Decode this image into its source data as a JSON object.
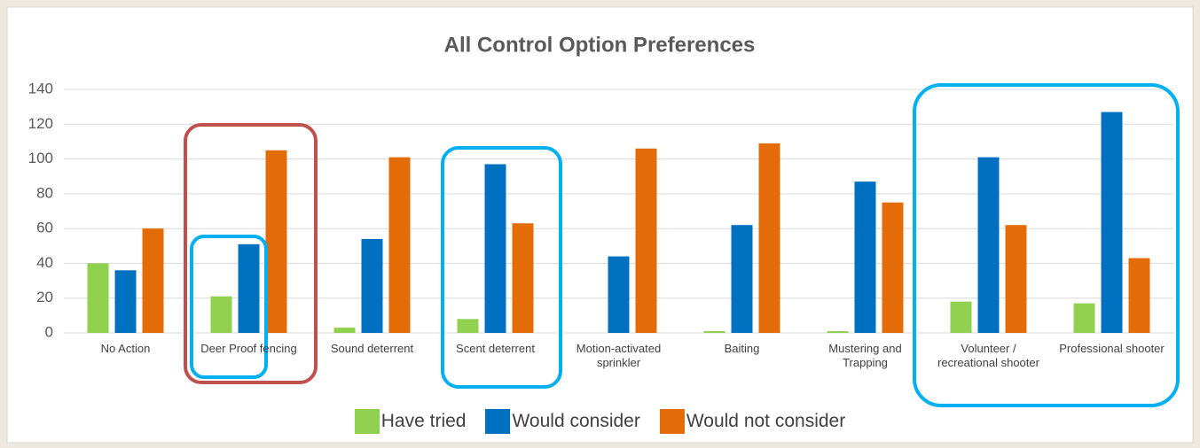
{
  "chart_data": {
    "type": "bar",
    "title": "All Control Option Preferences",
    "categories": [
      "No Action",
      "Deer Proof fencing",
      "Sound deterrent",
      "Scent deterrent",
      "Motion-activated sprinkler",
      "Baiting",
      "Mustering and Trapping",
      "Volunteer / recreational shooter",
      "Professional shooter"
    ],
    "series": [
      {
        "name": "Have tried",
        "color": "#92d050",
        "values": [
          40,
          21,
          3,
          8,
          0,
          1,
          1,
          18,
          17
        ]
      },
      {
        "name": "Would consider",
        "color": "#0070c0",
        "values": [
          36,
          51,
          54,
          97,
          44,
          62,
          87,
          101,
          127
        ]
      },
      {
        "name": "Would not consider",
        "color": "#e36c09",
        "values": [
          60,
          105,
          101,
          63,
          106,
          109,
          75,
          62,
          43
        ]
      }
    ],
    "ylim": [
      0,
      140
    ],
    "yticks": [
      0,
      20,
      40,
      60,
      80,
      100,
      120,
      140
    ],
    "grid": true,
    "legend": "bottom"
  }
}
